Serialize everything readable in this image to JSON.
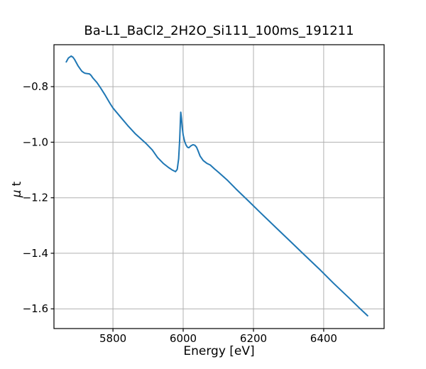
{
  "figure": {
    "background": "#ffffff"
  },
  "chart_data": {
    "type": "line",
    "title": "Ba-L1_BaCl2_2H2O_Si111_100ms_191211",
    "xlabel": "Energy [eV]",
    "ylabel": "μ t",
    "ylabel_parts": {
      "symbol": "μ",
      "rest": "t"
    },
    "xlim": [
      5632,
      6572
    ],
    "ylim": [
      -1.671,
      -0.649
    ],
    "grid": true,
    "legend_visible": false,
    "colors": {
      "line": "#1f77b4",
      "grid": "#b0b0b0",
      "axis": "#000000",
      "text": "#000000"
    },
    "xticks": [
      {
        "value": 5800,
        "label": "5800"
      },
      {
        "value": 6000,
        "label": "6000"
      },
      {
        "value": 6200,
        "label": "6200"
      },
      {
        "value": 6400,
        "label": "6400"
      }
    ],
    "yticks": [
      {
        "value": -0.8,
        "label": "−0.8"
      },
      {
        "value": -1.0,
        "label": "−1.0"
      },
      {
        "value": -1.2,
        "label": "−1.2"
      },
      {
        "value": -1.4,
        "label": "−1.4"
      },
      {
        "value": -1.6,
        "label": "−1.6"
      }
    ],
    "series": [
      {
        "name": "mu_t_vs_energy",
        "color": "#1f77b4",
        "points": [
          [
            5667,
            -0.711
          ],
          [
            5673,
            -0.697
          ],
          [
            5681,
            -0.69
          ],
          [
            5686,
            -0.694
          ],
          [
            5691,
            -0.703
          ],
          [
            5701,
            -0.726
          ],
          [
            5711,
            -0.744
          ],
          [
            5716,
            -0.749
          ],
          [
            5721,
            -0.752
          ],
          [
            5727,
            -0.753
          ],
          [
            5733,
            -0.754
          ],
          [
            5738,
            -0.76
          ],
          [
            5743,
            -0.769
          ],
          [
            5754,
            -0.785
          ],
          [
            5764,
            -0.803
          ],
          [
            5778,
            -0.831
          ],
          [
            5792,
            -0.861
          ],
          [
            5800,
            -0.877
          ],
          [
            5822,
            -0.91
          ],
          [
            5842,
            -0.94
          ],
          [
            5863,
            -0.969
          ],
          [
            5893,
            -1.003
          ],
          [
            5912,
            -1.028
          ],
          [
            5927,
            -1.055
          ],
          [
            5943,
            -1.076
          ],
          [
            5958,
            -1.091
          ],
          [
            5970,
            -1.101
          ],
          [
            5978,
            -1.106
          ],
          [
            5983,
            -1.098
          ],
          [
            5987,
            -1.06
          ],
          [
            5990,
            -0.99
          ],
          [
            5992,
            -0.92
          ],
          [
            5993,
            -0.892
          ],
          [
            5995,
            -0.915
          ],
          [
            5997,
            -0.945
          ],
          [
            6000,
            -0.974
          ],
          [
            6004,
            -0.997
          ],
          [
            6008,
            -1.01
          ],
          [
            6012,
            -1.018
          ],
          [
            6016,
            -1.02
          ],
          [
            6022,
            -1.013
          ],
          [
            6028,
            -1.009
          ],
          [
            6033,
            -1.011
          ],
          [
            6038,
            -1.018
          ],
          [
            6042,
            -1.03
          ],
          [
            6048,
            -1.05
          ],
          [
            6057,
            -1.066
          ],
          [
            6067,
            -1.076
          ],
          [
            6077,
            -1.082
          ],
          [
            6089,
            -1.096
          ],
          [
            6101,
            -1.109
          ],
          [
            6125,
            -1.136
          ],
          [
            6150,
            -1.168
          ],
          [
            6186,
            -1.212
          ],
          [
            6220,
            -1.254
          ],
          [
            6267,
            -1.311
          ],
          [
            6310,
            -1.363
          ],
          [
            6347,
            -1.408
          ],
          [
            6390,
            -1.46
          ],
          [
            6428,
            -1.508
          ],
          [
            6470,
            -1.558
          ],
          [
            6500,
            -1.595
          ],
          [
            6525,
            -1.625
          ]
        ]
      }
    ]
  }
}
